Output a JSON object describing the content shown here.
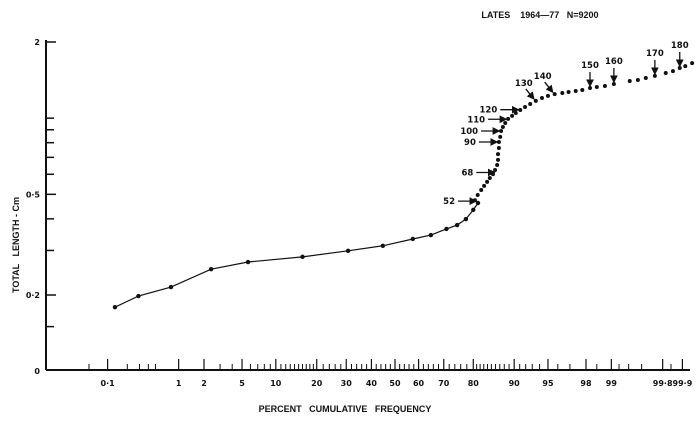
{
  "chart_data": {
    "type": "line",
    "title": "LATES    1964—77   N=9200",
    "xlabel": "PERCENT   CUMULATIVE   FREQUENCY",
    "ylabel": "TOTAL   LENGTH - Cm",
    "x_scale": "normal probability",
    "y_scale": "log",
    "xlim": [
      0.1,
      99.9
    ],
    "ylim": [
      0.1,
      2
    ],
    "grid": false,
    "x_ticks": [
      {
        "value": 0.1,
        "label": "0·1"
      },
      {
        "value": 1,
        "label": "1"
      },
      {
        "value": 2,
        "label": "2"
      },
      {
        "value": 5,
        "label": "5"
      },
      {
        "value": 10,
        "label": "10"
      },
      {
        "value": 20,
        "label": "20"
      },
      {
        "value": 30,
        "label": "30"
      },
      {
        "value": 40,
        "label": "40"
      },
      {
        "value": 50,
        "label": "50"
      },
      {
        "value": 60,
        "label": "60"
      },
      {
        "value": 70,
        "label": "70"
      },
      {
        "value": 80,
        "label": "80"
      },
      {
        "value": 90,
        "label": "90"
      },
      {
        "value": 95,
        "label": "95"
      },
      {
        "value": 98,
        "label": "98"
      },
      {
        "value": 99,
        "label": "99"
      },
      {
        "value": 99.8,
        "label": "99·8"
      },
      {
        "value": 99.9,
        "label": "99·9"
      }
    ],
    "y_ticks": [
      {
        "value": 2,
        "label": "2"
      },
      {
        "value": 0.5,
        "label": "0·5"
      },
      {
        "value": 0.2,
        "label": "0·2"
      },
      {
        "value": 0.1,
        "label": "0"
      }
    ],
    "series": [
      {
        "style": "line-with-markers",
        "x": [
          0.13,
          0.29,
          0.8,
          2.4,
          5.7,
          16,
          30.7,
          44.8,
          57.6,
          65,
          71,
          74.8,
          77.7,
          80,
          81.4
        ],
        "y": [
          0.179,
          0.198,
          0.215,
          0.253,
          0.27,
          0.283,
          0.299,
          0.313,
          0.333,
          0.345,
          0.365,
          0.378,
          0.399,
          0.434,
          0.462
        ]
      },
      {
        "style": "dots",
        "x": [
          80.5,
          81.3,
          82.3,
          83.1,
          83.9,
          84.6,
          85.4,
          85.9,
          86.4,
          86.6,
          86.6,
          86.8,
          86.8,
          87.1,
          87.3,
          87.7,
          88.2,
          88.8,
          89.6,
          90.3,
          91.1,
          91.9,
          92.7,
          93.5,
          94.3,
          95.0,
          95.7,
          96.4,
          96.9,
          97.4,
          97.8,
          98.2,
          98.5,
          98.8,
          99.07,
          99.42,
          99.55,
          99.65,
          99.74,
          99.82,
          99.86,
          99.89,
          99.91,
          99.93
        ],
        "y": [
          0.474,
          0.497,
          0.52,
          0.54,
          0.56,
          0.58,
          0.601,
          0.624,
          0.653,
          0.684,
          0.721,
          0.762,
          0.805,
          0.843,
          0.89,
          0.923,
          0.957,
          0.993,
          1.021,
          1.048,
          1.077,
          1.107,
          1.138,
          1.17,
          1.202,
          1.225,
          1.245,
          1.257,
          1.269,
          1.281,
          1.292,
          1.316,
          1.328,
          1.34,
          1.365,
          1.403,
          1.416,
          1.442,
          1.469,
          1.508,
          1.535,
          1.578,
          1.606,
          1.651
        ]
      }
    ],
    "annotations": [
      {
        "label": "52",
        "x": 81.4,
        "y": 0.47,
        "arrow": "from-left"
      },
      {
        "label": "68",
        "x": 86.2,
        "y": 0.61,
        "arrow": "from-left"
      },
      {
        "label": "90",
        "x": 86.8,
        "y": 0.805,
        "arrow": "from-left"
      },
      {
        "label": "100",
        "x": 87.3,
        "y": 0.89,
        "arrow": "from-left"
      },
      {
        "label": "110",
        "x": 88.8,
        "y": 0.99,
        "arrow": "from-left"
      },
      {
        "label": "120",
        "x": 91.1,
        "y": 1.08,
        "arrow": "from-left"
      },
      {
        "label": "130",
        "x": 93.5,
        "y": 1.17,
        "arrow": "from-upper-left"
      },
      {
        "label": "140",
        "x": 95.7,
        "y": 1.245,
        "arrow": "from-upper-left"
      },
      {
        "label": "150",
        "x": 98.2,
        "y": 1.316,
        "arrow": "from-above"
      },
      {
        "label": "160",
        "x": 99.07,
        "y": 1.365,
        "arrow": "from-above"
      },
      {
        "label": "170",
        "x": 99.74,
        "y": 1.469,
        "arrow": "from-above"
      },
      {
        "label": "180",
        "x": 99.89,
        "y": 1.578,
        "arrow": "from-above"
      }
    ]
  }
}
